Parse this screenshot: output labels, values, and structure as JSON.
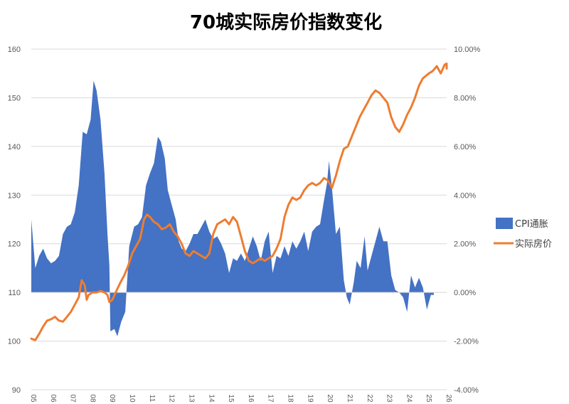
{
  "chart_data": {
    "type": "area+line",
    "title": "70城实际房价指数变化",
    "y_left": {
      "ticks": [
        "160",
        "150",
        "140",
        "130",
        "120",
        "110",
        "100",
        "90"
      ],
      "range": [
        90,
        160
      ]
    },
    "y_right": {
      "ticks": [
        "10.00%",
        "8.00%",
        "6.00%",
        "4.00%",
        "2.00%",
        "0.00%",
        "-2.00%",
        "-4.00%"
      ],
      "range": [
        -4.0,
        10.0
      ],
      "unit": "%"
    },
    "x_ticks": [
      "05",
      "06",
      "07",
      "08",
      "09",
      "10",
      "11",
      "12",
      "13",
      "14",
      "15",
      "16",
      "17",
      "18",
      "19",
      "20",
      "21",
      "22",
      "23",
      "24",
      "25",
      "26"
    ],
    "x_range": [
      2005.0,
      2026.0
    ],
    "legend": {
      "placement": "right"
    },
    "series": [
      {
        "name": "CPI通胀",
        "type": "area",
        "axis": "right",
        "color": "#4472C4",
        "points": [
          [
            2005.0,
            3.0
          ],
          [
            2005.2,
            1.0
          ],
          [
            2005.4,
            1.5
          ],
          [
            2005.6,
            1.8
          ],
          [
            2005.8,
            1.4
          ],
          [
            2006.0,
            1.2
          ],
          [
            2006.2,
            1.3
          ],
          [
            2006.4,
            1.5
          ],
          [
            2006.6,
            2.4
          ],
          [
            2006.8,
            2.7
          ],
          [
            2007.0,
            2.8
          ],
          [
            2007.2,
            3.3
          ],
          [
            2007.4,
            4.4
          ],
          [
            2007.6,
            6.6
          ],
          [
            2007.8,
            6.5
          ],
          [
            2008.0,
            7.1
          ],
          [
            2008.15,
            8.7
          ],
          [
            2008.3,
            8.3
          ],
          [
            2008.5,
            7.1
          ],
          [
            2008.7,
            4.9
          ],
          [
            2008.85,
            2.4
          ],
          [
            2008.95,
            1.1
          ],
          [
            2009.0,
            -1.6
          ],
          [
            2009.2,
            -1.5
          ],
          [
            2009.35,
            -1.8
          ],
          [
            2009.55,
            -1.2
          ],
          [
            2009.75,
            -0.8
          ],
          [
            2009.95,
            1.9
          ],
          [
            2010.2,
            2.7
          ],
          [
            2010.4,
            2.8
          ],
          [
            2010.6,
            3.1
          ],
          [
            2010.8,
            4.4
          ],
          [
            2011.0,
            4.9
          ],
          [
            2011.2,
            5.3
          ],
          [
            2011.4,
            6.4
          ],
          [
            2011.55,
            6.2
          ],
          [
            2011.75,
            5.5
          ],
          [
            2011.9,
            4.2
          ],
          [
            2012.1,
            3.6
          ],
          [
            2012.3,
            3.0
          ],
          [
            2012.45,
            2.1
          ],
          [
            2012.6,
            1.8
          ],
          [
            2012.8,
            1.7
          ],
          [
            2013.0,
            2.0
          ],
          [
            2013.2,
            2.4
          ],
          [
            2013.4,
            2.4
          ],
          [
            2013.6,
            2.7
          ],
          [
            2013.8,
            3.0
          ],
          [
            2014.0,
            2.5
          ],
          [
            2014.2,
            2.2
          ],
          [
            2014.4,
            2.3
          ],
          [
            2014.6,
            2.0
          ],
          [
            2014.8,
            1.6
          ],
          [
            2015.0,
            0.8
          ],
          [
            2015.2,
            1.4
          ],
          [
            2015.4,
            1.3
          ],
          [
            2015.6,
            1.6
          ],
          [
            2015.8,
            1.3
          ],
          [
            2016.0,
            1.8
          ],
          [
            2016.2,
            2.3
          ],
          [
            2016.4,
            1.9
          ],
          [
            2016.6,
            1.3
          ],
          [
            2016.8,
            2.1
          ],
          [
            2017.0,
            2.5
          ],
          [
            2017.2,
            0.8
          ],
          [
            2017.4,
            1.5
          ],
          [
            2017.6,
            1.4
          ],
          [
            2017.8,
            1.9
          ],
          [
            2018.0,
            1.5
          ],
          [
            2018.2,
            2.1
          ],
          [
            2018.4,
            1.8
          ],
          [
            2018.6,
            2.1
          ],
          [
            2018.8,
            2.5
          ],
          [
            2019.0,
            1.7
          ],
          [
            2019.2,
            2.5
          ],
          [
            2019.4,
            2.7
          ],
          [
            2019.6,
            2.8
          ],
          [
            2019.8,
            3.8
          ],
          [
            2019.95,
            4.5
          ],
          [
            2020.05,
            5.4
          ],
          [
            2020.2,
            4.3
          ],
          [
            2020.4,
            2.4
          ],
          [
            2020.6,
            2.7
          ],
          [
            2020.8,
            0.5
          ],
          [
            2020.95,
            -0.2
          ],
          [
            2021.1,
            -0.5
          ],
          [
            2021.3,
            0.4
          ],
          [
            2021.45,
            1.3
          ],
          [
            2021.65,
            1.0
          ],
          [
            2021.85,
            2.3
          ],
          [
            2022.0,
            0.9
          ],
          [
            2022.2,
            1.5
          ],
          [
            2022.4,
            2.1
          ],
          [
            2022.6,
            2.7
          ],
          [
            2022.8,
            2.1
          ],
          [
            2023.0,
            2.1
          ],
          [
            2023.2,
            0.7
          ],
          [
            2023.4,
            0.1
          ],
          [
            2023.6,
            0.0
          ],
          [
            2023.8,
            -0.2
          ],
          [
            2024.0,
            -0.8
          ],
          [
            2024.2,
            0.7
          ],
          [
            2024.4,
            0.2
          ],
          [
            2024.6,
            0.6
          ],
          [
            2024.8,
            0.2
          ],
          [
            2025.0,
            -0.7
          ],
          [
            2025.2,
            -0.1
          ],
          [
            2025.35,
            -0.1
          ]
        ]
      },
      {
        "name": "实际房价",
        "type": "line",
        "axis": "left",
        "color": "#ED7D31",
        "points": [
          [
            2005.0,
            100.5
          ],
          [
            2005.2,
            100.2
          ],
          [
            2005.4,
            101.5
          ],
          [
            2005.6,
            103.0
          ],
          [
            2005.8,
            104.2
          ],
          [
            2006.0,
            104.5
          ],
          [
            2006.2,
            105.0
          ],
          [
            2006.4,
            104.2
          ],
          [
            2006.6,
            104.0
          ],
          [
            2006.8,
            105.0
          ],
          [
            2007.0,
            106.0
          ],
          [
            2007.2,
            107.5
          ],
          [
            2007.4,
            109.0
          ],
          [
            2007.55,
            112.5
          ],
          [
            2007.7,
            111.5
          ],
          [
            2007.8,
            108.5
          ],
          [
            2007.9,
            109.5
          ],
          [
            2008.1,
            110.0
          ],
          [
            2008.3,
            110.0
          ],
          [
            2008.5,
            110.3
          ],
          [
            2008.7,
            110.0
          ],
          [
            2008.85,
            109.5
          ],
          [
            2008.95,
            108.0
          ],
          [
            2009.1,
            108.5
          ],
          [
            2009.3,
            110.3
          ],
          [
            2009.5,
            112.0
          ],
          [
            2009.7,
            113.5
          ],
          [
            2009.9,
            115.5
          ],
          [
            2010.1,
            118.0
          ],
          [
            2010.3,
            119.5
          ],
          [
            2010.5,
            121.0
          ],
          [
            2010.7,
            125.0
          ],
          [
            2010.85,
            126.0
          ],
          [
            2011.0,
            125.5
          ],
          [
            2011.2,
            124.5
          ],
          [
            2011.4,
            124.0
          ],
          [
            2011.6,
            123.0
          ],
          [
            2011.8,
            123.3
          ],
          [
            2012.0,
            124.0
          ],
          [
            2012.2,
            122.5
          ],
          [
            2012.4,
            121.5
          ],
          [
            2012.6,
            120.0
          ],
          [
            2012.8,
            118.0
          ],
          [
            2013.0,
            117.5
          ],
          [
            2013.2,
            118.5
          ],
          [
            2013.4,
            118.0
          ],
          [
            2013.6,
            117.5
          ],
          [
            2013.8,
            117.0
          ],
          [
            2014.0,
            118.0
          ],
          [
            2014.2,
            122.0
          ],
          [
            2014.4,
            124.0
          ],
          [
            2014.6,
            124.5
          ],
          [
            2014.8,
            125.0
          ],
          [
            2015.0,
            124.0
          ],
          [
            2015.2,
            125.5
          ],
          [
            2015.4,
            124.5
          ],
          [
            2015.6,
            121.5
          ],
          [
            2015.8,
            118.5
          ],
          [
            2016.0,
            116.5
          ],
          [
            2016.2,
            116.0
          ],
          [
            2016.4,
            116.5
          ],
          [
            2016.6,
            117.0
          ],
          [
            2016.8,
            116.5
          ],
          [
            2017.0,
            117.0
          ],
          [
            2017.2,
            117.5
          ],
          [
            2017.4,
            119.0
          ],
          [
            2017.6,
            121.0
          ],
          [
            2017.8,
            125.5
          ],
          [
            2018.0,
            128.0
          ],
          [
            2018.2,
            129.5
          ],
          [
            2018.4,
            129.0
          ],
          [
            2018.6,
            129.5
          ],
          [
            2018.8,
            131.0
          ],
          [
            2019.0,
            132.0
          ],
          [
            2019.2,
            132.5
          ],
          [
            2019.4,
            132.0
          ],
          [
            2019.6,
            132.5
          ],
          [
            2019.8,
            133.5
          ],
          [
            2020.0,
            133.0
          ],
          [
            2020.2,
            131.5
          ],
          [
            2020.4,
            134.0
          ],
          [
            2020.6,
            137.0
          ],
          [
            2020.8,
            139.5
          ],
          [
            2021.0,
            140.0
          ],
          [
            2021.2,
            142.0
          ],
          [
            2021.4,
            144.0
          ],
          [
            2021.6,
            146.0
          ],
          [
            2021.8,
            147.5
          ],
          [
            2022.0,
            149.0
          ],
          [
            2022.2,
            150.5
          ],
          [
            2022.4,
            151.5
          ],
          [
            2022.6,
            151.0
          ],
          [
            2022.8,
            150.0
          ],
          [
            2023.0,
            149.0
          ],
          [
            2023.2,
            146.0
          ],
          [
            2023.4,
            144.0
          ],
          [
            2023.6,
            143.0
          ],
          [
            2023.8,
            144.5
          ],
          [
            2024.0,
            146.5
          ],
          [
            2024.2,
            148.0
          ],
          [
            2024.4,
            150.0
          ],
          [
            2024.6,
            152.5
          ],
          [
            2024.8,
            154.0
          ],
          [
            2024.95,
            154.5
          ],
          [
            2025.1,
            155.0
          ],
          [
            2025.3,
            155.5
          ],
          [
            2025.5,
            156.5
          ],
          [
            2025.7,
            155.0
          ],
          [
            2025.9,
            156.8
          ],
          [
            2026.0,
            157.0
          ],
          [
            2026.0,
            156.0
          ]
        ]
      }
    ]
  }
}
